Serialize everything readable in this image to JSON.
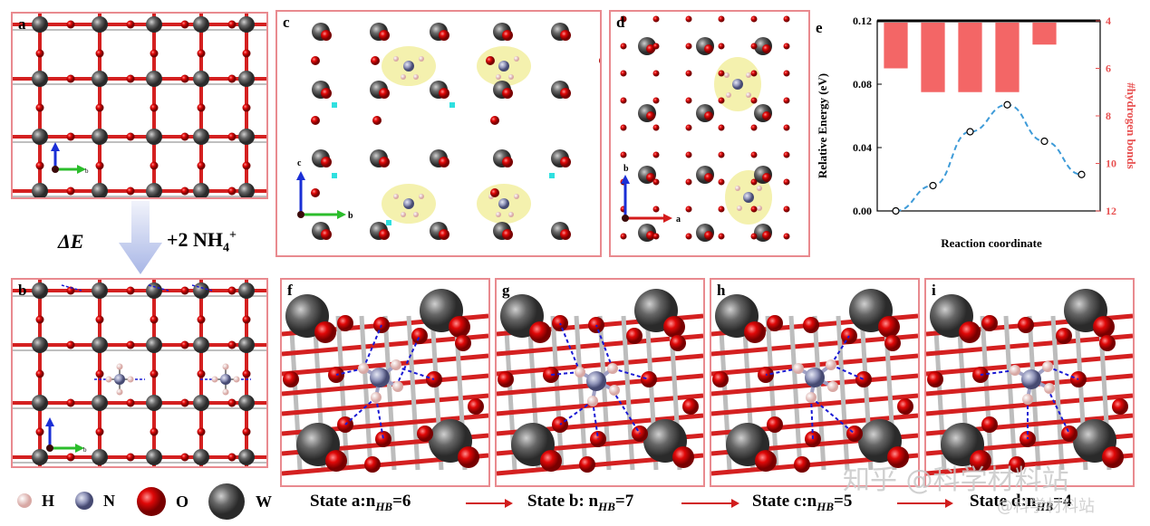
{
  "panels": {
    "a": "a",
    "b": "b",
    "c": "c",
    "d": "d",
    "e": "e",
    "f": "f",
    "g": "g",
    "h": "h",
    "i": "i"
  },
  "axes_small": {
    "b": "b",
    "c": "c",
    "a": "a"
  },
  "reaction": {
    "delta_e": "ΔE",
    "reagent": "+2 NH",
    "reagent_sub": "4",
    "reagent_sup": "+"
  },
  "legend": [
    {
      "symbol": "H",
      "color": "#f08c7c"
    },
    {
      "symbol": "N",
      "color": "#2c2c6e"
    },
    {
      "symbol": "O",
      "color": "#e00000"
    },
    {
      "symbol": "W",
      "color": "#555555"
    }
  ],
  "states": [
    {
      "label": "State a:n",
      "sub": "HB",
      "value": "=6"
    },
    {
      "label": "State b: n",
      "sub": "HB",
      "value": "=7"
    },
    {
      "label": "State c:n",
      "sub": "HB",
      "value": "=5"
    },
    {
      "label": "State d:n",
      "sub": "HB",
      "value": "=4"
    }
  ],
  "watermark": {
    "text": "知乎 @科学材料站",
    "sub": "@科学材料站"
  },
  "colors": {
    "W": "#5a5a5a",
    "O": "#d40000",
    "bond": "#d42020",
    "frame": "#e98a8f",
    "bar": "#f25555",
    "curve": "#3e9bd8",
    "hbond": "#1a1ad4",
    "density": "#f2efa0"
  },
  "chart_data": {
    "type": "bar",
    "title": "",
    "xlabel": "Reaction coordinate",
    "ylabel": "Relative Energy (eV)",
    "y2label": "#hydrogen bonds",
    "ylim": [
      0,
      0.12
    ],
    "y_ticks": [
      "0.00",
      "0.04",
      "0.08",
      "0.12"
    ],
    "y2lim": [
      4,
      12
    ],
    "y2_ticks": [
      "4",
      "6",
      "8",
      "10",
      "12"
    ],
    "y2_inverted": true,
    "bars": {
      "name": "",
      "values": [
        6,
        7,
        7,
        7,
        5,
        4
      ]
    },
    "energy": {
      "name": "",
      "values": [
        0.0,
        0.016,
        0.05,
        0.067,
        0.044,
        0.023
      ]
    }
  }
}
